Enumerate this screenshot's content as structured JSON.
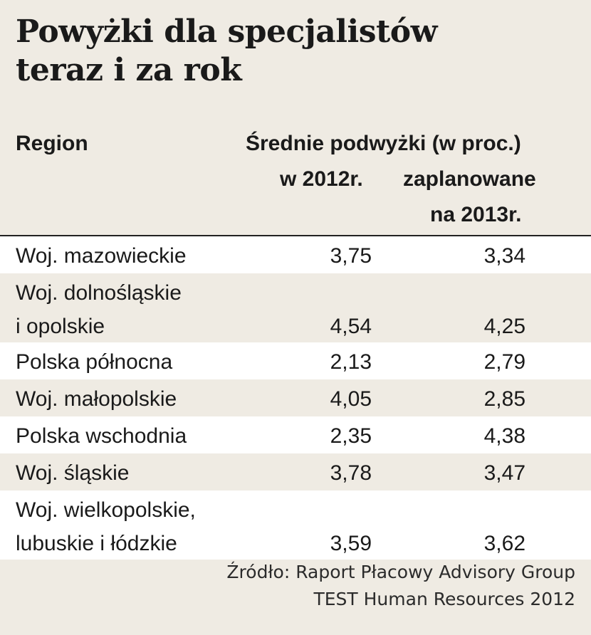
{
  "title_lines": [
    "Powyżki dla specjalistów",
    "teraz i za rok"
  ],
  "headers": {
    "region": "Region",
    "main": "Średnie podwyżki (w proc.)",
    "col1": "w 2012r.",
    "col2_line1": "zaplanowane",
    "col2_line2": "na 2013r."
  },
  "chart_data": {
    "type": "table",
    "title": "Powyżki dla specjalistów teraz i za rok",
    "columns": [
      "Region",
      "w 2012r.",
      "zaplanowane na 2013r."
    ],
    "rows": [
      {
        "region_lines": [
          "Woj. mazowieckie"
        ],
        "v2012": "3,75",
        "v2013": "3,34"
      },
      {
        "region_lines": [
          "Woj. dolnośląskie",
          "i opolskie"
        ],
        "v2012": "4,54",
        "v2013": "4,25"
      },
      {
        "region_lines": [
          "Polska północna"
        ],
        "v2012": "2,13",
        "v2013": "2,79"
      },
      {
        "region_lines": [
          "Woj. małopolskie"
        ],
        "v2012": "4,05",
        "v2013": "2,85"
      },
      {
        "region_lines": [
          "Polska wschodnia"
        ],
        "v2012": "2,35",
        "v2013": "4,38"
      },
      {
        "region_lines": [
          "Woj. śląskie"
        ],
        "v2012": "3,78",
        "v2013": "3,47"
      },
      {
        "region_lines": [
          "Woj. wielkopolskie,",
          "lubuskie i łódzkie"
        ],
        "v2012": "3,59",
        "v2013": "3,62"
      }
    ]
  },
  "source_lines": [
    "Źródło: Raport Płacowy Advisory Group",
    "TEST Human Resources 2012"
  ]
}
